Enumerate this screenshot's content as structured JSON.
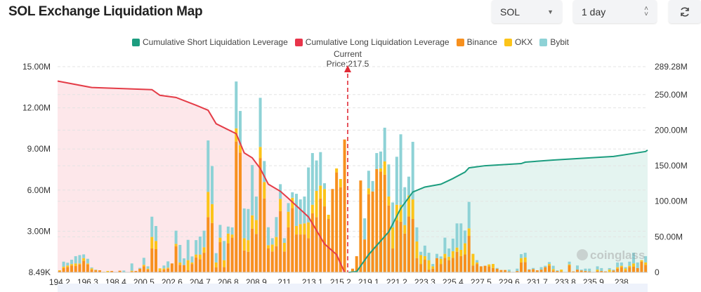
{
  "header": {
    "title": "SOL Exchange Liquidation Map",
    "symbol_select": {
      "value": "SOL",
      "icon": "caret-down-icon"
    },
    "range_select": {
      "value": "1 day",
      "icon": "updown-icon"
    },
    "refresh_icon": "refresh-icon"
  },
  "watermark": "coinglass",
  "chart_data": {
    "type": "bar",
    "stacked": true,
    "current_price_label": "Current Price:217.5",
    "current_price": 217.5,
    "legend_placement": "top",
    "grid": true,
    "legend": [
      {
        "name": "Cumulative Short Liquidation Leverage",
        "color": "#1c9d7f"
      },
      {
        "name": "Cumulative Long Liquidation Leverage",
        "color": "#e8344a"
      },
      {
        "name": "Binance",
        "color": "#f7901e"
      },
      {
        "name": "OKX",
        "color": "#fcc419"
      },
      {
        "name": "Bybit",
        "color": "#8ed2d6"
      }
    ],
    "colors": {
      "long_line": "#e43c47",
      "long_area": "#fde7ea",
      "short_line": "#1c9d7f",
      "short_area": "#e4f4f0",
      "price_line": "#e02b36"
    },
    "y_left": {
      "range": [
        0,
        15
      ],
      "unit": "M",
      "tick_values": [
        0,
        3,
        6,
        9,
        12,
        15
      ],
      "tick_labels": [
        "8.49K",
        "3.00M",
        "6.00M",
        "9.00M",
        "12.00M",
        "15.00M"
      ]
    },
    "y_right": {
      "range": [
        0,
        289.28
      ],
      "unit": "M",
      "tick_values": [
        0,
        50,
        100,
        150,
        200,
        250,
        289.28
      ],
      "tick_labels": [
        "0",
        "50.00M",
        "100.00M",
        "150.00M",
        "200.00M",
        "250.00M",
        "289.28M"
      ]
    },
    "x_tick_labels": [
      "194.2",
      "196.3",
      "198.4",
      "200.5",
      "202.6",
      "204.7",
      "206.8",
      "208.9",
      "211",
      "213.1",
      "215.2",
      "219.1",
      "221.2",
      "223.3",
      "225.4",
      "227.5",
      "229.6",
      "231.7",
      "233.8",
      "235.9",
      "238"
    ],
    "categories": [
      194.2,
      194.5,
      194.8,
      195.1,
      195.4,
      195.7,
      196.0,
      196.3,
      196.6,
      196.9,
      197.2,
      197.5,
      197.8,
      198.1,
      198.4,
      198.7,
      199.0,
      199.3,
      199.6,
      199.9,
      200.2,
      200.5,
      200.8,
      201.1,
      201.4,
      201.7,
      202.0,
      202.3,
      202.6,
      202.9,
      203.2,
      203.5,
      203.8,
      204.1,
      204.4,
      204.7,
      205.0,
      205.3,
      205.6,
      205.9,
      206.2,
      206.5,
      206.8,
      207.1,
      207.4,
      207.7,
      208.0,
      208.3,
      208.6,
      208.9,
      209.2,
      209.5,
      209.8,
      210.1,
      210.4,
      210.7,
      211.0,
      211.3,
      211.6,
      211.9,
      212.2,
      212.5,
      212.8,
      213.1,
      213.4,
      213.7,
      214.0,
      214.3,
      214.6,
      214.9,
      215.2,
      215.5,
      217.6,
      217.9,
      218.2,
      218.5,
      218.8,
      219.1,
      219.4,
      219.7,
      220.0,
      220.3,
      220.6,
      220.9,
      221.2,
      221.5,
      221.8,
      222.1,
      222.4,
      222.7,
      223.0,
      223.3,
      223.6,
      223.9,
      224.2,
      224.5,
      224.8,
      225.1,
      225.4,
      225.7,
      226.0,
      226.3,
      226.6,
      226.9,
      227.2,
      227.5,
      227.8,
      228.1,
      228.4,
      228.7,
      229.0,
      229.3,
      229.6,
      229.9,
      230.2,
      230.5,
      230.8,
      231.1,
      231.4,
      231.7,
      232.0,
      232.3,
      232.6,
      232.9,
      233.2,
      233.5,
      233.8,
      234.1,
      234.4,
      234.7,
      235.0,
      235.3,
      235.6,
      235.9,
      236.2,
      236.5,
      236.8,
      237.1,
      237.4,
      237.7,
      238.0,
      238.3,
      238.6,
      238.9,
      239.2,
      239.5,
      239.8
    ],
    "series": [
      {
        "name": "Binance",
        "values": [
          0.1,
          0.32,
          0.38,
          0.5,
          0.46,
          0.58,
          0.84,
          0.58,
          0.2,
          0.15,
          0.15,
          0,
          0.02,
          0.1,
          0.03,
          0.12,
          0.03,
          0,
          0.07,
          0.1,
          0.27,
          0.44,
          0.2,
          1.74,
          1.69,
          0.12,
          0.2,
          0.27,
          0.65,
          1.91,
          0.55,
          0.53,
          0.15,
          0.61,
          1.09,
          0.96,
          1.43,
          4.03,
          3.6,
          0.36,
          2.2,
          0.38,
          2.12,
          2.53,
          9.54,
          8.74,
          1.6,
          1.5,
          3.19,
          2.8,
          8.34,
          5.39,
          1.74,
          1.52,
          1.91,
          4.47,
          1.52,
          3.28,
          4.68,
          2.76,
          2.76,
          2.76,
          2.49,
          4.3,
          4.03,
          5.39,
          4.81,
          3.89,
          6.08,
          7.29,
          6.21,
          9.69,
          0.05,
          0.27,
          1.18,
          6.7,
          2.4,
          5.7,
          5.9,
          7.54,
          7.35,
          7.12,
          4.88,
          1.74,
          3.79,
          3.69,
          2.83,
          4.08,
          3.89,
          1.04,
          0.61,
          0.92,
          0.2,
          0.27,
          1.04,
          0.61,
          1.06,
          0.89,
          1.06,
          1.5,
          1.18,
          1.31,
          2.66,
          0.5,
          0.61,
          0.44,
          0.48,
          0.44,
          0.32,
          0.27,
          0.17,
          0.17,
          0.07,
          0,
          0.1,
          0.72,
          0.75,
          0.2,
          0.24,
          0.15,
          0.2,
          0.38,
          0.5,
          0.14,
          0.1,
          0.07,
          0,
          0.51,
          0.07,
          0.2,
          0.14,
          0.1,
          0.07,
          0,
          0.1,
          0.1,
          0.07,
          0.03,
          0.14,
          0.27,
          0.38,
          0.15,
          0.38,
          0.41,
          0.31,
          0.78,
          0.55
        ]
      },
      {
        "name": "OKX",
        "values": [
          0.05,
          0.09,
          0.12,
          0.1,
          0.19,
          0.07,
          0.2,
          0.07,
          0.09,
          0.03,
          0,
          0.04,
          0.08,
          0,
          0,
          0,
          0,
          0,
          0.05,
          0,
          0,
          0.11,
          0.07,
          0.84,
          0.6,
          0.17,
          0.09,
          0.07,
          0,
          0.17,
          0.17,
          0,
          0.74,
          0.11,
          0.21,
          0.34,
          0.4,
          1.84,
          1.38,
          0.36,
          0.33,
          0.51,
          0.71,
          0.23,
          0.96,
          0.54,
          0.89,
          0.85,
          0.97,
          1.02,
          0.81,
          1.2,
          0.24,
          0.51,
          0.67,
          0.89,
          0.63,
          1.14,
          0.76,
          0.62,
          0.76,
          0.81,
          1.16,
          0.63,
          1.91,
          0.94,
          1.27,
          0.31,
          0,
          0.29,
          0.6,
          0,
          0,
          0,
          0,
          0,
          0,
          0.43,
          0,
          0,
          0.23,
          0.97,
          0.65,
          1.54,
          1.14,
          1.22,
          0.62,
          1.53,
          1.43,
          1.21,
          0.65,
          0.26,
          0.69,
          0.17,
          0,
          0.38,
          0.29,
          0.25,
          0.48,
          0.31,
          0.46,
          0.81,
          0.55,
          0.85,
          0.11,
          0,
          0,
          0.14,
          0.29,
          0,
          0,
          0,
          0,
          0,
          0,
          0.32,
          0.34,
          0,
          0,
          0,
          0,
          0,
          0.11,
          0.1,
          0,
          0.13,
          0,
          0.07,
          0,
          0,
          0,
          0,
          0,
          0,
          0.1,
          0,
          0,
          0.17,
          0,
          0.1,
          0.1,
          0.13,
          0.1,
          0.24,
          0,
          0.11,
          0.17
        ]
      },
      {
        "name": "Bybit",
        "values": [
          0,
          0.37,
          0.2,
          0.32,
          0.53,
          0.61,
          0.27,
          0.34,
          0.07,
          0.02,
          0,
          0,
          0,
          0,
          0,
          0,
          0.1,
          0.01,
          0.53,
          0,
          0.06,
          0.51,
          0.17,
          1.48,
          1.09,
          0,
          0.21,
          0.46,
          0,
          0.96,
          1.28,
          0.49,
          1.48,
          0.44,
          1.05,
          1.31,
          1.21,
          3.75,
          2.77,
          0.68,
          0.93,
          1.4,
          0.51,
          0.52,
          3.42,
          2.49,
          2.17,
          2.27,
          3.67,
          1.71,
          3.58,
          1.53,
          1.31,
          0.46,
          1.45,
          1.07,
          0.34,
          0.63,
          0.4,
          2.35,
          1.8,
          1.96,
          4.0,
          3.77,
          2.22,
          2.44,
          0.42,
          0,
          0,
          0,
          0,
          0,
          0,
          0,
          0,
          0,
          1.54,
          1.28,
          0.76,
          1.16,
          1.23,
          2.46,
          2.34,
          1.82,
          3.5,
          5.16,
          2.76,
          1.37,
          4.2,
          1.03,
          0.24,
          0.77,
          0.54,
          0.17,
          0.31,
          0.17,
          1.18,
          0.6,
          0.92,
          1.76,
          1.93,
          0.93,
          1.93,
          0,
          0.17,
          0,
          0,
          0,
          0,
          0.05,
          0,
          0,
          0.13,
          0.03,
          0.17,
          0.29,
          0.34,
          0.03,
          0.08,
          0,
          0.18,
          0.1,
          0.14,
          0.24,
          0.05,
          0,
          0.03,
          0.2,
          0,
          0.3,
          0.06,
          0.17,
          0.2,
          0.03,
          0.24,
          0.21,
          0,
          0.11,
          0.06,
          0.35,
          0.24,
          0.1,
          0.3,
          0.78,
          0.41,
          0,
          0.46
        ]
      }
    ],
    "cumulative_long": [
      [
        194.2,
        269
      ],
      [
        196.6,
        260
      ],
      [
        201.1,
        257
      ],
      [
        201.7,
        249
      ],
      [
        202.9,
        246
      ],
      [
        204.4,
        235
      ],
      [
        205.3,
        228
      ],
      [
        205.9,
        209
      ],
      [
        207.4,
        195
      ],
      [
        208.0,
        168
      ],
      [
        208.6,
        161
      ],
      [
        209.2,
        146
      ],
      [
        209.8,
        124
      ],
      [
        210.7,
        114
      ],
      [
        211.3,
        104
      ],
      [
        212.8,
        78
      ],
      [
        214.0,
        40
      ],
      [
        214.9,
        25
      ],
      [
        215.5,
        0
      ]
    ],
    "cumulative_short": [
      [
        217.6,
        0
      ],
      [
        218.2,
        1
      ],
      [
        219.1,
        25
      ],
      [
        220.6,
        57
      ],
      [
        221.5,
        90
      ],
      [
        222.4,
        113
      ],
      [
        223.3,
        120
      ],
      [
        224.5,
        124
      ],
      [
        225.4,
        132
      ],
      [
        226.3,
        141
      ],
      [
        226.6,
        147
      ],
      [
        227.8,
        150
      ],
      [
        230.5,
        153
      ],
      [
        230.8,
        155
      ],
      [
        232.9,
        158
      ],
      [
        236.5,
        162
      ],
      [
        237.4,
        163
      ],
      [
        239.8,
        170
      ]
    ]
  }
}
